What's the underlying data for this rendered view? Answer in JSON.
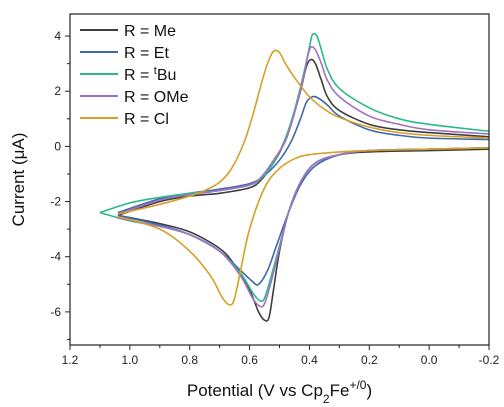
{
  "chart_data": {
    "type": "line",
    "title": "",
    "xlabel": {
      "main": "Potential (V vs Cp",
      "sub": "2",
      "mid": "Fe",
      "sup": "+/0",
      "end": ")"
    },
    "ylabel": {
      "main": "Current (",
      "mu": "μ",
      "end": "A)"
    },
    "xlim": [
      1.2,
      -0.2
    ],
    "ylim": [
      -7.2,
      4.8
    ],
    "xticks": [
      1.2,
      1.0,
      0.8,
      0.6,
      0.4,
      0.2,
      0.0,
      -0.2
    ],
    "xtick_labels": [
      "1.2",
      "1.0",
      "0.8",
      "0.6",
      "0.4",
      "0.2",
      "0.0",
      "-0.2"
    ],
    "yticks": [
      4,
      2,
      0,
      -2,
      -4,
      -6
    ],
    "ytick_labels": [
      "4",
      "2",
      "0",
      "-2",
      "-4",
      "-6"
    ],
    "grid": false,
    "legend_position": "top-left",
    "series": [
      {
        "name": "R = Me",
        "name_parts": [
          "R = Me"
        ],
        "color": "#3d3d3d",
        "forward": [
          [
            1.04,
            -2.5
          ],
          [
            0.9,
            -2.0
          ],
          [
            0.8,
            -1.8
          ],
          [
            0.7,
            -1.7
          ],
          [
            0.6,
            -1.5
          ],
          [
            0.56,
            -1.2
          ],
          [
            0.52,
            -0.6
          ],
          [
            0.49,
            0.0
          ],
          [
            0.46,
            0.9
          ],
          [
            0.43,
            2.0
          ],
          [
            0.41,
            2.9
          ],
          [
            0.395,
            3.15
          ],
          [
            0.38,
            3.0
          ],
          [
            0.36,
            2.4
          ],
          [
            0.34,
            1.8
          ],
          [
            0.3,
            1.3
          ],
          [
            0.2,
            0.8
          ],
          [
            0.1,
            0.6
          ],
          [
            0.0,
            0.5
          ],
          [
            -0.2,
            0.35
          ]
        ],
        "reverse": [
          [
            -0.2,
            -0.1
          ],
          [
            0.0,
            -0.15
          ],
          [
            0.2,
            -0.2
          ],
          [
            0.3,
            -0.3
          ],
          [
            0.38,
            -0.6
          ],
          [
            0.43,
            -1.3
          ],
          [
            0.47,
            -2.4
          ],
          [
            0.5,
            -3.8
          ],
          [
            0.52,
            -5.2
          ],
          [
            0.535,
            -6.2
          ],
          [
            0.55,
            -6.3
          ],
          [
            0.57,
            -6.0
          ],
          [
            0.6,
            -5.2
          ],
          [
            0.65,
            -4.3
          ],
          [
            0.7,
            -3.7
          ],
          [
            0.8,
            -3.1
          ],
          [
            0.9,
            -2.8
          ],
          [
            1.04,
            -2.5
          ]
        ]
      },
      {
        "name": "R = Et",
        "name_parts": [
          "R = Et"
        ],
        "color": "#3f68ad",
        "forward": [
          [
            1.04,
            -2.4
          ],
          [
            0.9,
            -1.9
          ],
          [
            0.8,
            -1.7
          ],
          [
            0.7,
            -1.55
          ],
          [
            0.6,
            -1.35
          ],
          [
            0.55,
            -1.05
          ],
          [
            0.5,
            -0.5
          ],
          [
            0.46,
            0.2
          ],
          [
            0.43,
            1.0
          ],
          [
            0.41,
            1.6
          ],
          [
            0.39,
            1.8
          ],
          [
            0.37,
            1.75
          ],
          [
            0.34,
            1.5
          ],
          [
            0.3,
            1.1
          ],
          [
            0.2,
            0.6
          ],
          [
            0.1,
            0.4
          ],
          [
            0.0,
            0.3
          ],
          [
            -0.2,
            0.25
          ]
        ],
        "reverse": [
          [
            -0.2,
            -0.05
          ],
          [
            0.0,
            -0.1
          ],
          [
            0.2,
            -0.15
          ],
          [
            0.3,
            -0.3
          ],
          [
            0.38,
            -0.7
          ],
          [
            0.43,
            -1.4
          ],
          [
            0.47,
            -2.4
          ],
          [
            0.51,
            -3.6
          ],
          [
            0.54,
            -4.5
          ],
          [
            0.57,
            -5.0
          ],
          [
            0.59,
            -4.9
          ],
          [
            0.63,
            -4.5
          ],
          [
            0.7,
            -3.8
          ],
          [
            0.8,
            -3.2
          ],
          [
            0.9,
            -2.85
          ],
          [
            1.04,
            -2.5
          ]
        ]
      },
      {
        "name": "R = tBu",
        "name_parts": [
          "R = ",
          "t",
          "Bu"
        ],
        "color": "#2bb98c",
        "forward": [
          [
            1.1,
            -2.4
          ],
          [
            1.0,
            -2.05
          ],
          [
            0.9,
            -1.85
          ],
          [
            0.8,
            -1.7
          ],
          [
            0.7,
            -1.6
          ],
          [
            0.6,
            -1.4
          ],
          [
            0.56,
            -1.15
          ],
          [
            0.52,
            -0.6
          ],
          [
            0.48,
            0.3
          ],
          [
            0.45,
            1.3
          ],
          [
            0.42,
            2.6
          ],
          [
            0.4,
            3.6
          ],
          [
            0.39,
            4.05
          ],
          [
            0.375,
            4.0
          ],
          [
            0.36,
            3.5
          ],
          [
            0.34,
            2.8
          ],
          [
            0.3,
            2.1
          ],
          [
            0.2,
            1.4
          ],
          [
            0.1,
            1.0
          ],
          [
            0.0,
            0.8
          ],
          [
            -0.2,
            0.55
          ]
        ],
        "reverse": [
          [
            -0.2,
            -0.05
          ],
          [
            0.0,
            -0.1
          ],
          [
            0.2,
            -0.15
          ],
          [
            0.3,
            -0.3
          ],
          [
            0.38,
            -0.6
          ],
          [
            0.43,
            -1.3
          ],
          [
            0.47,
            -2.4
          ],
          [
            0.5,
            -3.6
          ],
          [
            0.53,
            -4.8
          ],
          [
            0.55,
            -5.5
          ],
          [
            0.565,
            -5.6
          ],
          [
            0.59,
            -5.3
          ],
          [
            0.63,
            -4.6
          ],
          [
            0.7,
            -3.8
          ],
          [
            0.8,
            -3.2
          ],
          [
            0.9,
            -2.9
          ],
          [
            1.0,
            -2.7
          ],
          [
            1.1,
            -2.4
          ]
        ]
      },
      {
        "name": "R = OMe",
        "name_parts": [
          "R = OMe"
        ],
        "color": "#a371c4",
        "forward": [
          [
            1.04,
            -2.45
          ],
          [
            0.9,
            -1.95
          ],
          [
            0.8,
            -1.75
          ],
          [
            0.7,
            -1.6
          ],
          [
            0.6,
            -1.4
          ],
          [
            0.56,
            -1.1
          ],
          [
            0.52,
            -0.5
          ],
          [
            0.48,
            0.2
          ],
          [
            0.45,
            1.2
          ],
          [
            0.42,
            2.5
          ],
          [
            0.405,
            3.3
          ],
          [
            0.395,
            3.6
          ],
          [
            0.38,
            3.5
          ],
          [
            0.36,
            3.0
          ],
          [
            0.34,
            2.4
          ],
          [
            0.3,
            1.8
          ],
          [
            0.2,
            1.1
          ],
          [
            0.1,
            0.8
          ],
          [
            0.0,
            0.6
          ],
          [
            -0.2,
            0.45
          ]
        ],
        "reverse": [
          [
            -0.2,
            -0.05
          ],
          [
            0.0,
            -0.1
          ],
          [
            0.2,
            -0.15
          ],
          [
            0.3,
            -0.3
          ],
          [
            0.38,
            -0.6
          ],
          [
            0.43,
            -1.3
          ],
          [
            0.47,
            -2.4
          ],
          [
            0.5,
            -3.7
          ],
          [
            0.53,
            -5.0
          ],
          [
            0.55,
            -5.7
          ],
          [
            0.565,
            -5.8
          ],
          [
            0.59,
            -5.5
          ],
          [
            0.63,
            -4.7
          ],
          [
            0.7,
            -3.8
          ],
          [
            0.8,
            -3.2
          ],
          [
            0.9,
            -2.9
          ],
          [
            1.04,
            -2.6
          ]
        ]
      },
      {
        "name": "R = Cl",
        "name_parts": [
          "R = Cl"
        ],
        "color": "#d4a025",
        "forward": [
          [
            1.04,
            -2.45
          ],
          [
            0.9,
            -2.1
          ],
          [
            0.8,
            -1.8
          ],
          [
            0.75,
            -1.6
          ],
          [
            0.7,
            -1.3
          ],
          [
            0.66,
            -0.8
          ],
          [
            0.62,
            0.1
          ],
          [
            0.59,
            1.1
          ],
          [
            0.56,
            2.3
          ],
          [
            0.54,
            3.0
          ],
          [
            0.52,
            3.45
          ],
          [
            0.5,
            3.4
          ],
          [
            0.48,
            3.0
          ],
          [
            0.45,
            2.5
          ],
          [
            0.4,
            1.8
          ],
          [
            0.35,
            1.35
          ],
          [
            0.3,
            1.05
          ],
          [
            0.2,
            0.7
          ],
          [
            0.1,
            0.5
          ],
          [
            0.0,
            0.4
          ],
          [
            -0.2,
            0.3
          ]
        ],
        "reverse": [
          [
            -0.2,
            -0.05
          ],
          [
            0.0,
            -0.1
          ],
          [
            0.2,
            -0.15
          ],
          [
            0.3,
            -0.2
          ],
          [
            0.4,
            -0.3
          ],
          [
            0.45,
            -0.45
          ],
          [
            0.5,
            -0.8
          ],
          [
            0.55,
            -1.5
          ],
          [
            0.6,
            -3.0
          ],
          [
            0.63,
            -4.5
          ],
          [
            0.65,
            -5.5
          ],
          [
            0.665,
            -5.75
          ],
          [
            0.69,
            -5.5
          ],
          [
            0.73,
            -4.7
          ],
          [
            0.8,
            -3.8
          ],
          [
            0.9,
            -3.0
          ],
          [
            1.04,
            -2.55
          ]
        ]
      }
    ]
  }
}
